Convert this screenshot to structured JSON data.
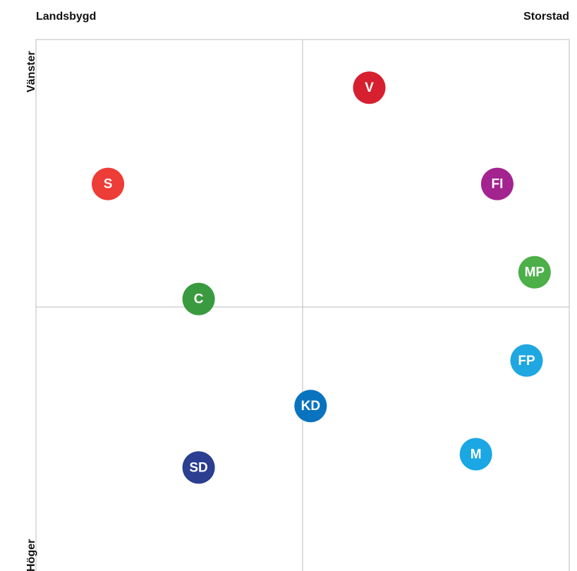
{
  "chart_data": {
    "type": "scatter",
    "x_label_left": "Landsbygd",
    "x_label_right": "Storstad",
    "y_label_top": "Vänster",
    "y_label_bottom": "Höger",
    "xlim": [
      -1,
      1
    ],
    "ylim": [
      -1,
      1
    ],
    "points": [
      {
        "label": "V",
        "color": "#d7202f",
        "x": 0.25,
        "y": 0.82
      },
      {
        "label": "S",
        "color": "#ee3c36",
        "x": -0.73,
        "y": 0.46
      },
      {
        "label": "FI",
        "color": "#a3238f",
        "x": 0.73,
        "y": 0.46
      },
      {
        "label": "MP",
        "color": "#4caf48",
        "x": 0.87,
        "y": 0.13
      },
      {
        "label": "C",
        "color": "#3a9a3f",
        "x": -0.39,
        "y": 0.03
      },
      {
        "label": "FP",
        "color": "#1ea7e1",
        "x": 0.84,
        "y": -0.2
      },
      {
        "label": "KD",
        "color": "#0a73c0",
        "x": 0.03,
        "y": -0.37
      },
      {
        "label": "M",
        "color": "#1aa7e4",
        "x": 0.65,
        "y": -0.55
      },
      {
        "label": "SD",
        "color": "#2b3e8f",
        "x": -0.39,
        "y": -0.6
      }
    ]
  }
}
